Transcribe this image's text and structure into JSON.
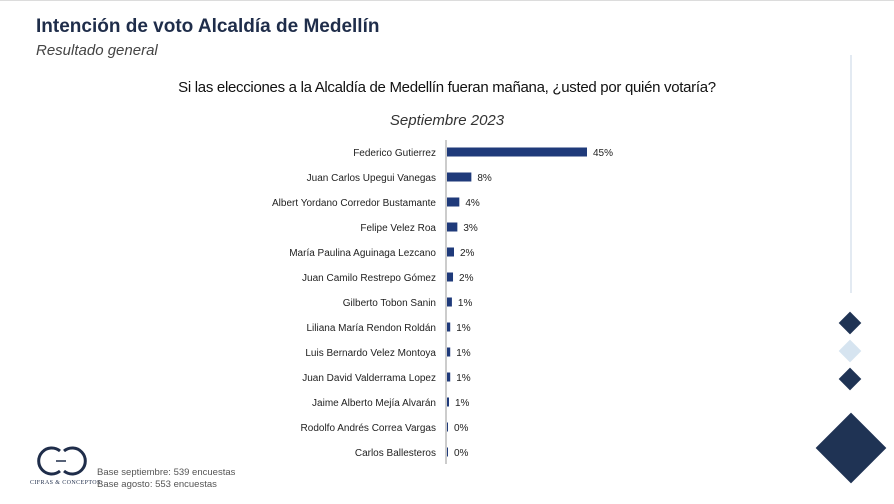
{
  "header": {
    "title": "Intención de voto Alcaldía de Medellín",
    "subtitle": "Resultado general"
  },
  "question": "Si las elecciones a la Alcaldía de Medellín fueran mañana, ¿usted por quién votaría?",
  "period": "Septiembre 2023",
  "footer": {
    "base_september": "Base septiembre: 539 encuestas",
    "base_august": "Base agosto: 553 encuestas",
    "logo_text": "CIFRAS & CONCEPTOS"
  },
  "colors": {
    "bar": "#1f3a7a",
    "dark_navy": "#1f3354",
    "light_blue": "#d6e4f0"
  },
  "chart_data": {
    "type": "bar",
    "orientation": "horizontal",
    "categories": [
      "Federico Gutierrez",
      "Juan Carlos Upegui Vanegas",
      "Albert Yordano Corredor Bustamante",
      "Felipe Velez Roa",
      "María Paulina Aguinaga Lezcano",
      "Juan Camilo Restrepo Gómez",
      "Gilberto Tobon Sanin",
      "Liliana María Rendon Roldán",
      "Luis Bernardo Velez Montoya",
      "Juan David Valderrama Lopez",
      "Jaime Alberto Mejía Alvarán",
      "Rodolfo Andrés Correa Vargas",
      "Carlos Ballesteros"
    ],
    "values": [
      45,
      8,
      4,
      3,
      2,
      2,
      1,
      1,
      1,
      1,
      1,
      0,
      0
    ],
    "data_labels": [
      "45%",
      "8%",
      "4%",
      "3%",
      "2%",
      "2%",
      "1%",
      "1%",
      "1%",
      "1%",
      "1%",
      "0%",
      "0%"
    ],
    "bar_fraction_of_max": [
      1.0,
      0.174,
      0.088,
      0.074,
      0.05,
      0.043,
      0.035,
      0.023,
      0.023,
      0.023,
      0.014,
      0.0,
      0.0
    ],
    "xlim": [
      0,
      45
    ],
    "title": "",
    "xlabel": "",
    "ylabel": "",
    "grid": false,
    "legend": "none"
  }
}
